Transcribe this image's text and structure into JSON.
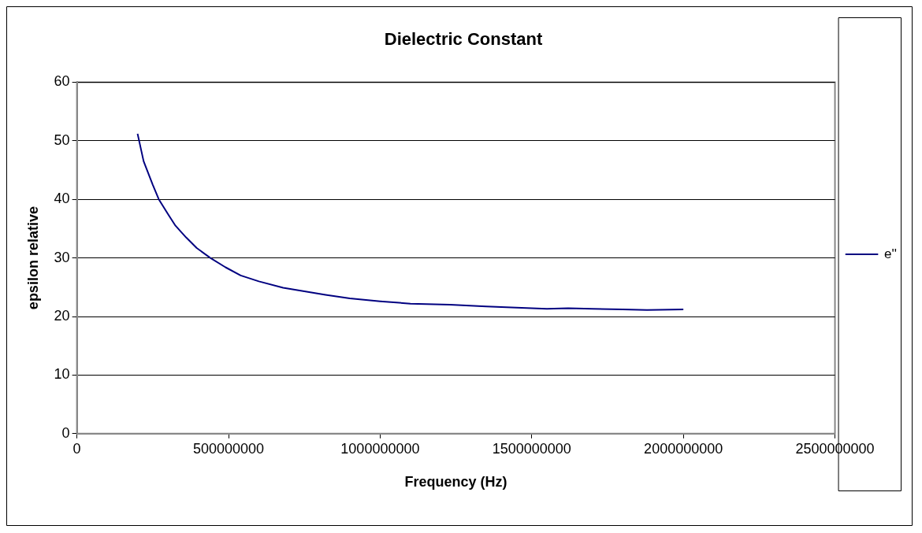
{
  "chart_data": {
    "type": "line",
    "title": "Dielectric Constant",
    "xlabel": "Frequency (Hz)",
    "ylabel": "epsilon relative",
    "x": [
      200000000,
      220000000,
      250000000,
      270000000,
      300000000,
      325000000,
      360000000,
      395000000,
      440000000,
      490000000,
      540000000,
      600000000,
      680000000,
      750000000,
      820000000,
      900000000,
      1000000000,
      1100000000,
      1230000000,
      1350000000,
      1450000000,
      1550000000,
      1620000000,
      1700000000,
      1800000000,
      1880000000,
      2000000000
    ],
    "series": [
      {
        "name": "e''",
        "color": "#000080",
        "values": [
          51.2,
          46.5,
          42.5,
          40.0,
          37.5,
          35.5,
          33.5,
          31.7,
          30.0,
          28.4,
          27.0,
          26.0,
          24.9,
          24.3,
          23.7,
          23.1,
          22.6,
          22.2,
          22.0,
          21.7,
          21.5,
          21.3,
          21.4,
          21.3,
          21.2,
          21.1,
          21.2
        ]
      }
    ],
    "xlim": [
      0,
      2500000000
    ],
    "xticks": [
      0,
      500000000,
      1000000000,
      1500000000,
      2000000000,
      2500000000
    ],
    "ylim": [
      0,
      60
    ],
    "yticks": [
      0,
      10,
      20,
      30,
      40,
      50,
      60
    ],
    "grid": "y",
    "legend": "right",
    "marker": "none",
    "line_style": "solid"
  }
}
